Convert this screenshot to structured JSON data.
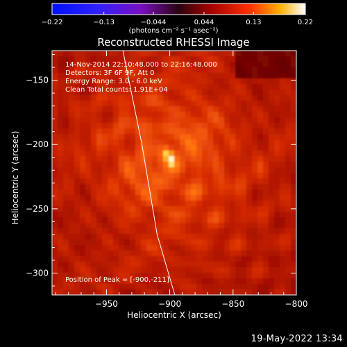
{
  "chart_data": {
    "type": "heatmap",
    "title": "Reconstructed RHESSI Image",
    "xlabel": "Heliocentric X (arcsec)",
    "ylabel": "Heliocentric Y (arcsec)",
    "xlim": [
      -993,
      -800
    ],
    "ylim": [
      -317,
      -127
    ],
    "x_ticks": [
      -950,
      -900,
      -850,
      -800
    ],
    "y_ticks": [
      -300,
      -250,
      -200,
      -150
    ],
    "x_tick_labels": [
      "−950",
      "−900",
      "−850",
      "−800"
    ],
    "y_tick_labels": [
      "−300",
      "−250",
      "−200",
      "−150"
    ],
    "colorbar": {
      "range": [
        -0.22,
        0.22
      ],
      "ticks": [
        -0.22,
        -0.13,
        -0.044,
        0.044,
        0.13,
        0.22
      ],
      "tick_labels": [
        "−0.22",
        "−0.13",
        "−0.044",
        "0.044",
        "0.13",
        "0.22"
      ],
      "unit_label": "(photons cm⁻² s⁻¹ asec⁻²)",
      "colormap": "rhessi-blue-purple-red-yellow-white"
    },
    "peak": [
      -900,
      -211
    ],
    "peak_value": 0.22,
    "limb_curve": [
      [
        -937,
        -127
      ],
      [
        -922,
        -200
      ],
      [
        -910,
        -270
      ],
      [
        -896,
        -317
      ]
    ],
    "annotations": [
      "14-Nov-2014 22:10:48.000 to 22:16:48.000",
      "Detectors: 3F 6F 9F, Att 0",
      "Energy Range: 3.0 - 6.0 keV",
      "Clean     Total counts: 1.91E+04",
      "Position of Peak = [-900,-211]"
    ]
  },
  "footer": {
    "timestamp": "19-May-2022 13:34"
  },
  "colors": {
    "background": "#000000",
    "text": "#ffffff",
    "limb": "#ffffff"
  }
}
